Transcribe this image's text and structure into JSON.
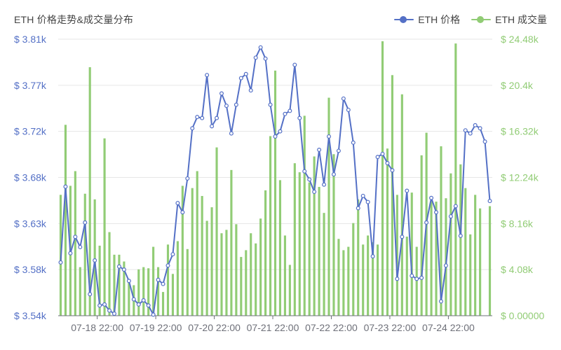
{
  "chart_data": {
    "type": "bar+line",
    "title": "ETH 价格走势&成交量分布",
    "legend": [
      {
        "name": "ETH 价格",
        "color": "#5470c6"
      },
      {
        "name": "ETH 成交量",
        "color": "#91cc75"
      }
    ],
    "x_tick_labels": [
      "07-18 22:00",
      "07-19 22:00",
      "07-20 22:00",
      "07-21 22:00",
      "07-22 22:00",
      "07-23 22:00",
      "07-24 22:00"
    ],
    "y_left": {
      "min": 3540,
      "max": 3810,
      "tick_values": [
        3540,
        3585,
        3630,
        3675,
        3720,
        3765,
        3810
      ],
      "tick_labels": [
        "$ 3.54k",
        "$ 3.58k",
        "$ 3.63k",
        "$ 3.68k",
        "$ 3.72k",
        "$ 3.77k",
        "$ 3.81k"
      ]
    },
    "y_right": {
      "min": 0,
      "max": 24480,
      "tick_values": [
        0,
        4080,
        8160,
        12240,
        16320,
        20400,
        24480
      ],
      "tick_labels": [
        "$ 0.00000",
        "$ 4.08k",
        "$ 8.16k",
        "$ 12.24k",
        "$ 16.32k",
        "$ 20.4k",
        "$ 24.48k"
      ]
    },
    "grid": true,
    "series": [
      {
        "name": "ETH 价格",
        "type": "line",
        "color": "#5470c6",
        "values": [
          3592,
          3666,
          3601,
          3617,
          3607,
          3631,
          3561,
          3594,
          3550,
          3551,
          3545,
          3542,
          3588,
          3585,
          3574,
          3556,
          3551,
          3555,
          3550,
          3541,
          3575,
          3571,
          3589,
          3600,
          3650,
          3641,
          3674,
          3723,
          3734,
          3733,
          3775,
          3725,
          3733,
          3757,
          3745,
          3718,
          3746,
          3772,
          3776,
          3760,
          3792,
          3802,
          3791,
          3746,
          3715,
          3720,
          3737,
          3740,
          3785,
          3733,
          3681,
          3673,
          3661,
          3702,
          3668,
          3715,
          3678,
          3701,
          3752,
          3741,
          3709,
          3645,
          3657,
          3651,
          3598,
          3695,
          3698,
          3689,
          3682,
          3576,
          3617,
          3662,
          3579,
          3576,
          3577,
          3631,
          3655,
          3641,
          3554,
          3589,
          3637,
          3647,
          3618,
          3721,
          3718,
          3726,
          3723,
          3710,
          3652
        ]
      },
      {
        "name": "ETH 成交量",
        "type": "bar",
        "color": "#91cc75",
        "values": [
          10700,
          16900,
          11500,
          12800,
          4300,
          10800,
          22000,
          10300,
          6200,
          15700,
          7400,
          5400,
          5400,
          4800,
          3200,
          2700,
          4100,
          4300,
          4200,
          6100,
          4300,
          2100,
          6300,
          3700,
          6600,
          11500,
          5900,
          11300,
          12800,
          10600,
          8400,
          9600,
          14900,
          7300,
          7600,
          12900,
          8100,
          5200,
          5800,
          7300,
          6400,
          8600,
          11100,
          15900,
          21700,
          12000,
          7100,
          4500,
          13500,
          12700,
          17700,
          11800,
          14100,
          11400,
          9100,
          19300,
          14300,
          6800,
          5800,
          6100,
          8200,
          10300,
          6300,
          7100,
          6500,
          6300,
          24300,
          14800,
          21300,
          10700,
          19600,
          7000,
          10900,
          6100,
          14200,
          16200,
          10200,
          10100,
          15000,
          10400,
          12600,
          24100,
          13400,
          11300,
          7200,
          10700,
          9500,
          0,
          9700
        ]
      }
    ]
  }
}
